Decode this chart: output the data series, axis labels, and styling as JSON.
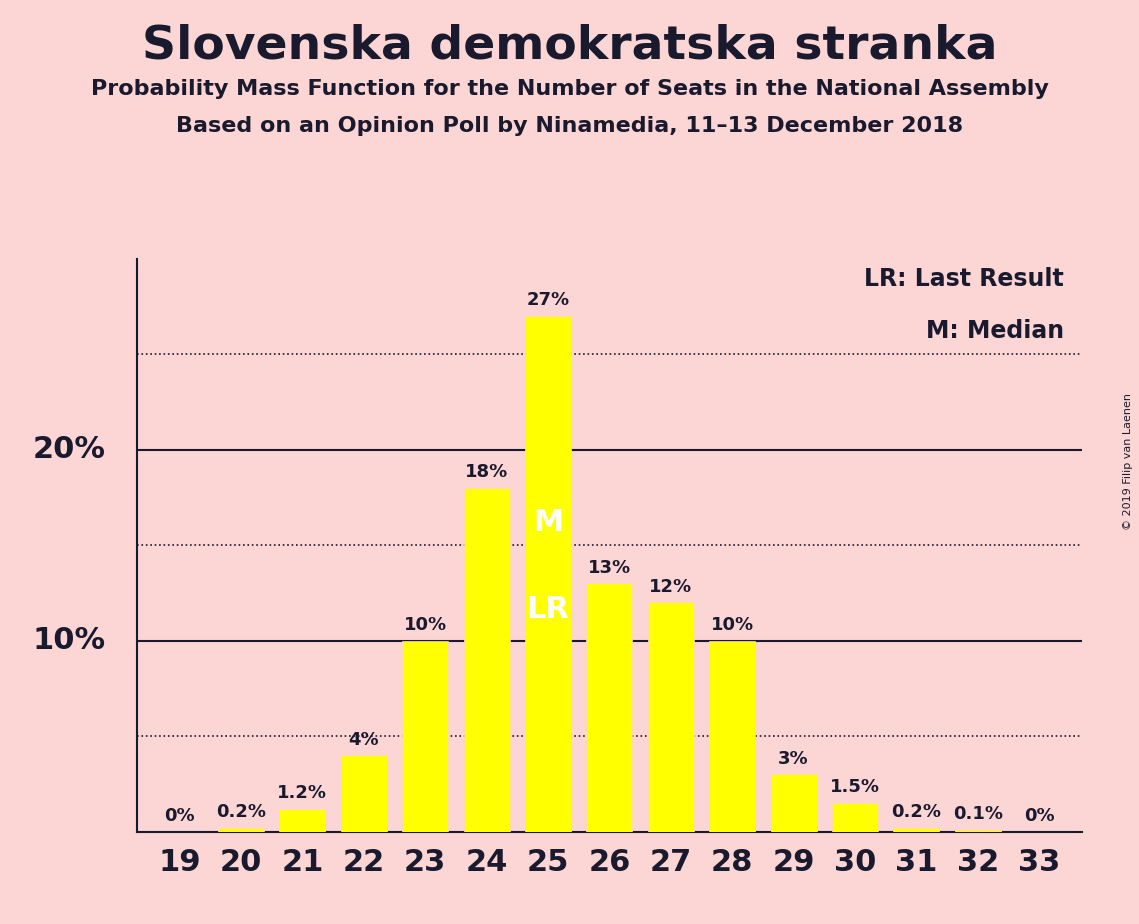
{
  "title": "Slovenska demokratska stranka",
  "subtitle1": "Probability Mass Function for the Number of Seats in the National Assembly",
  "subtitle2": "Based on an Opinion Poll by Ninamedia, 11–13 December 2018",
  "copyright": "© 2019 Filip van Laenen",
  "legend_lr": "LR: Last Result",
  "legend_m": "M: Median",
  "categories": [
    19,
    20,
    21,
    22,
    23,
    24,
    25,
    26,
    27,
    28,
    29,
    30,
    31,
    32,
    33
  ],
  "values": [
    0.0,
    0.2,
    1.2,
    4.0,
    10.0,
    18.0,
    27.0,
    13.0,
    12.0,
    10.0,
    3.0,
    1.5,
    0.2,
    0.1,
    0.0
  ],
  "bar_labels": [
    "0%",
    "0.2%",
    "1.2%",
    "4%",
    "10%",
    "18%",
    "27%",
    "13%",
    "12%",
    "10%",
    "3%",
    "1.5%",
    "0.2%",
    "0.1%",
    "0%"
  ],
  "bar_color": "#ffff00",
  "background_color": "#fcd5d5",
  "text_color": "#1a1a2e",
  "median_seat": 25,
  "last_result_seat": 25,
  "solid_hlines": [
    10.0,
    20.0
  ],
  "dotted_hlines": [
    5.0,
    15.0,
    25.0
  ],
  "ylim": [
    0,
    30
  ],
  "ytick_labels": [
    "10%",
    "20%"
  ],
  "ytick_values": [
    10,
    20
  ]
}
